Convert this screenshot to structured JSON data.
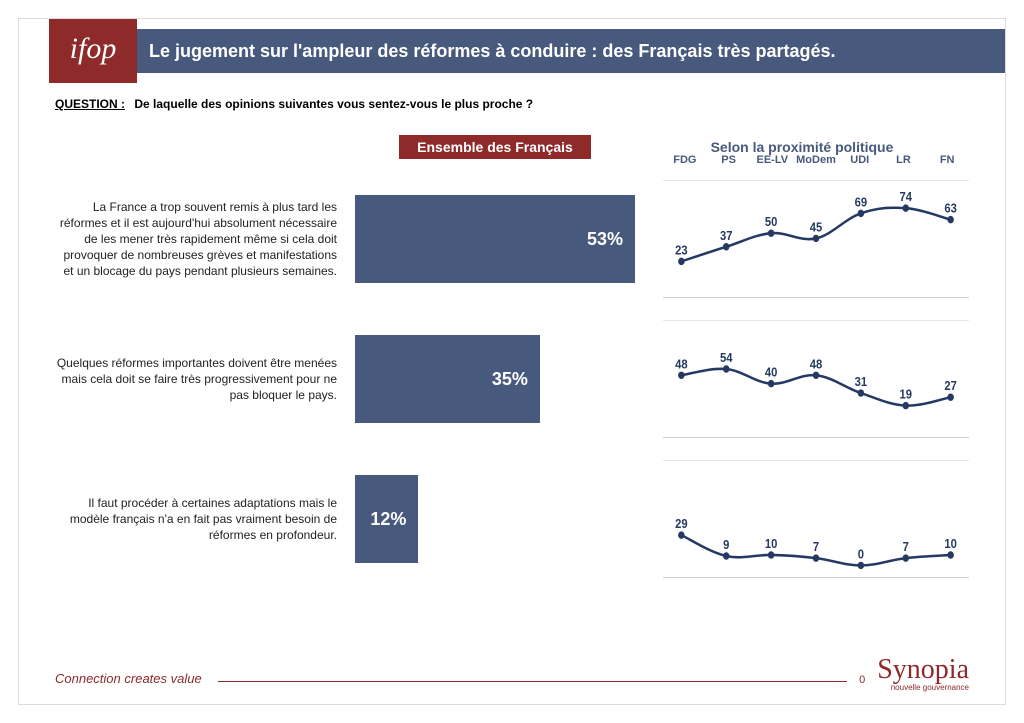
{
  "header": {
    "logo_text": "ifop",
    "title": "Le jugement sur l'ampleur des réformes à conduire : des Français très partagés."
  },
  "question": {
    "label": "QUESTION :",
    "text": "De laquelle des opinions suivantes vous sentez-vous le plus proche ?"
  },
  "columns": {
    "ensemble": "Ensemble des Français",
    "proximity": "Selon la proximité politique"
  },
  "chart": {
    "categories": [
      "FDG",
      "PS",
      "EE-LV",
      "MoDem",
      "UDI",
      "LR",
      "FN"
    ],
    "ymin": 0,
    "ymax": 80,
    "line_color": "#253a63",
    "line_width": 2.2,
    "marker_radius": 3.2,
    "label_fontsize": 11,
    "cat_color": "#48597e"
  },
  "rows": [
    {
      "label": "La France a trop souvent remis à plus tard les réformes et il est aujourd'hui absolument nécessaire de les mener très rapidement même si cela doit provoquer de nombreuses grèves et manifestations et un blocage du pays pendant plusieurs semaines.",
      "bar_value": 53,
      "bar_text": "53%",
      "bar_max": 53,
      "bar_color": "#48597e",
      "series": [
        23,
        37,
        50,
        45,
        69,
        74,
        63
      ]
    },
    {
      "label": "Quelques réformes importantes doivent être menées mais cela doit se faire très progressivement pour ne pas bloquer le pays.",
      "bar_value": 35,
      "bar_text": "35%",
      "bar_max": 53,
      "bar_color": "#48597e",
      "series": [
        48,
        54,
        40,
        48,
        31,
        19,
        27
      ]
    },
    {
      "label": "Il faut procéder à certaines adaptations mais le modèle français n'a en fait pas vraiment besoin de réformes en profondeur.",
      "bar_value": 12,
      "bar_text": "12%",
      "bar_max": 53,
      "bar_color": "#48597e",
      "series": [
        29,
        9,
        10,
        7,
        0,
        7,
        10
      ]
    }
  ],
  "footer": {
    "tagline": "Connection creates value",
    "page_number": "0",
    "brand": "Synopia",
    "brand_sub": "nouvelle gouvernance"
  }
}
